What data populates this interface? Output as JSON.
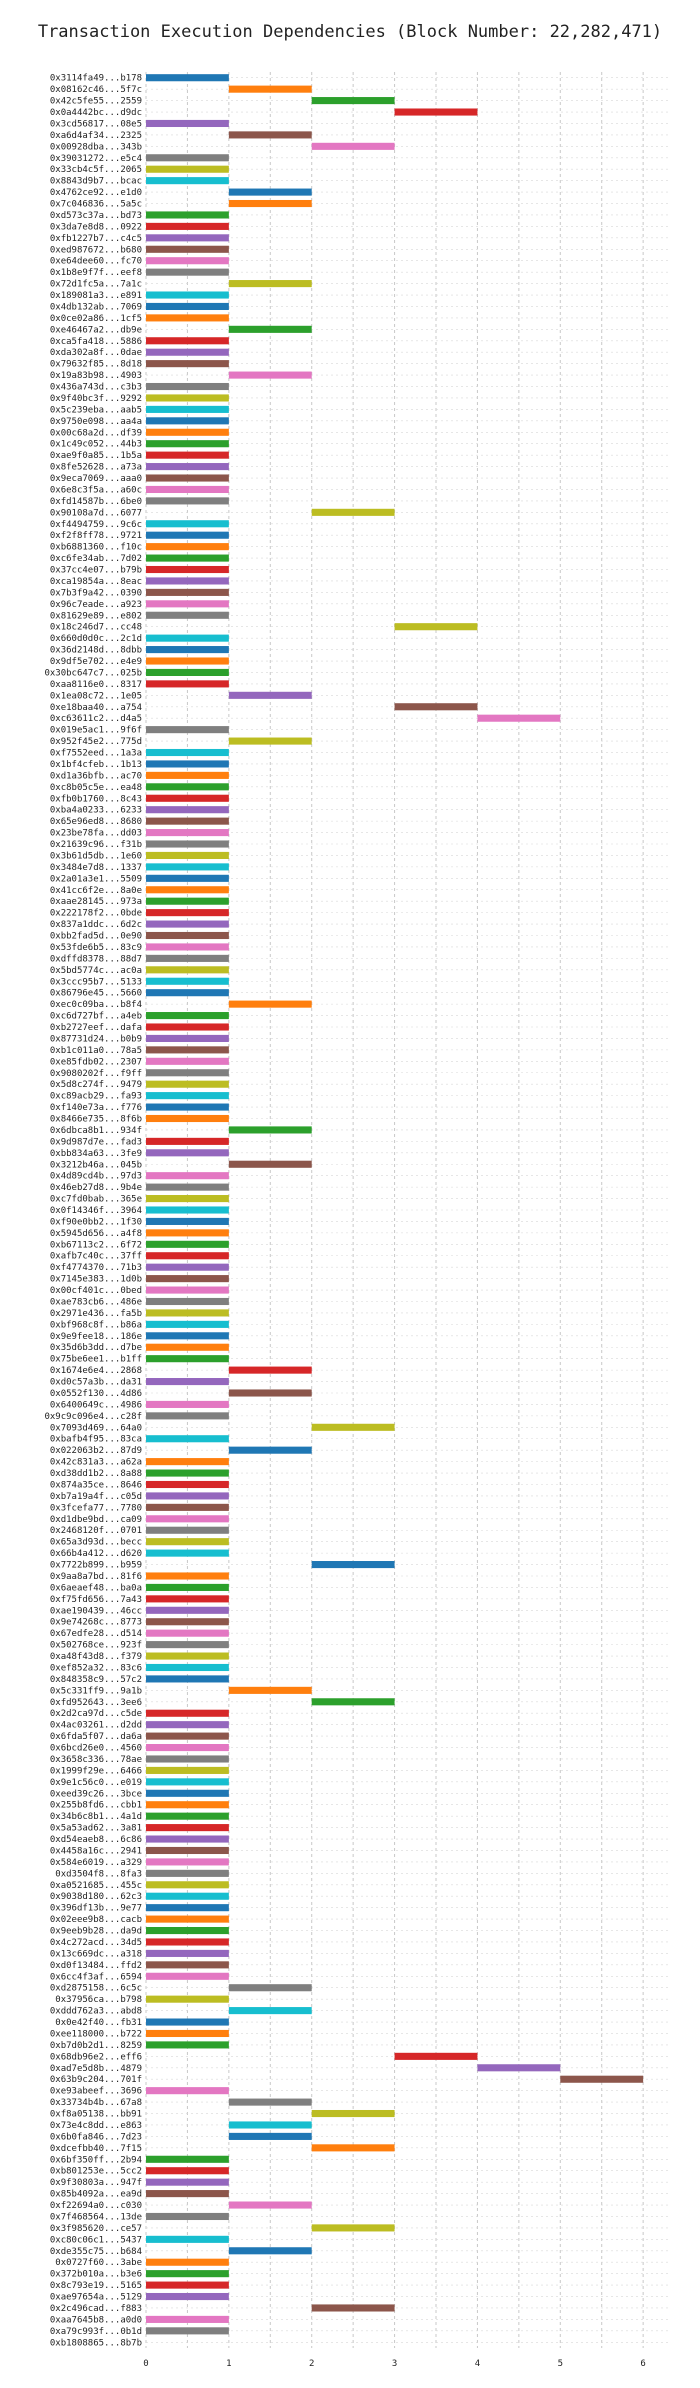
{
  "title": "Transaction Execution Dependencies (Block Number: 22,282,471)",
  "palette": [
    "#1f77b4",
    "#ff7f0e",
    "#2ca02c",
    "#d62728",
    "#9467bd",
    "#8c564b",
    "#e377c2",
    "#7f7f7f",
    "#bcbd22",
    "#17becf"
  ],
  "chart_data": {
    "type": "bar",
    "orientation": "horizontal",
    "title": "Transaction Execution Dependencies (Block Number: 22,282,471)",
    "xlabel": "",
    "ylabel": "",
    "xlim": [
      0,
      6.3
    ],
    "xticks": [
      0,
      1,
      2,
      3,
      4,
      5,
      6
    ],
    "grid": true,
    "tx_ids": [
      "0x3114fa49...b178",
      "0x08162c46...5f7c",
      "0x42c5fe55...2559",
      "0x0a4442bc...d9dc",
      "0x3cd56817...08e5",
      "0xa6d4af34...2325",
      "0x00928dba...343b",
      "0x39031272...e5c4",
      "0x33cb4c5f...2065",
      "0x8843d9b7...bcac",
      "0x4762ce92...e1d0",
      "0x7c046836...5a5c",
      "0xd573c37a...bd73",
      "0x3da7e8d8...0922",
      "0xfb1227b7...c4c5",
      "0xed987672...b680",
      "0xe64dee60...fc70",
      "0x1b8e9f7f...eef8",
      "0x72d1fc5a...7a1c",
      "0x189081a3...e891",
      "0x4db132ab...7069",
      "0x0ce02a86...1cf5",
      "0xe46467a2...db9e",
      "0xca5fa418...5886",
      "0xda302a8f...0dae",
      "0x79632f85...8d18",
      "0x19a83b98...4903",
      "0x436a743d...c3b3",
      "0x9f40bc3f...9292",
      "0x5c239eba...aab5",
      "0x9750e098...aa4a",
      "0x00c68a2d...df39",
      "0x1c49c052...44b3",
      "0xae9f0a85...1b5a",
      "0x8fe52628...a73a",
      "0x9eca7069...aaa0",
      "0x6e8c3f5a...a60c",
      "0xfd14587b...6be0",
      "0x90108a7d...6077",
      "0xf4494759...9c6c",
      "0xf2f8ff78...9721",
      "0xb6881360...f10c",
      "0xc6fe34ab...7d02",
      "0x37cc4e07...b79b",
      "0xca19854a...8eac",
      "0x7b3f9a42...0390",
      "0x96c7eade...a923",
      "0x81629e89...e802",
      "0x18c246d7...cc48",
      "0x660d0d0c...2c1d",
      "0x36d2148d...8dbb",
      "0x9df5e702...e4e9",
      "0x30bc647c7...025b",
      "0xaa8116e0...8317",
      "0x1ea08c72...1e05",
      "0xe18baa40...a754",
      "0xc63611c2...d4a5",
      "0x019e5ac1...9f6f",
      "0x952f45e2...775d",
      "0xf7552eed...1a3a",
      "0x1bf4cfeb...1b13",
      "0xd1a36bfb...ac70",
      "0xc8b05c5e...ea48",
      "0xfb0b1760...8c43",
      "0xba4a0233...6233",
      "0x65e96ed8...8680",
      "0x23be78fa...dd03",
      "0x21639c96...f31b",
      "0x3b61d5db...1e60",
      "0x3484e7d8...1337",
      "0x2a01a3e1...5509",
      "0x41cc6f2e...8a0e",
      "0xaae28145...973a",
      "0x222178f2...0bde",
      "0x837a1ddc...6d2c",
      "0xbb2fad5d...0e90",
      "0x53fde6b5...83c9",
      "0xdffd8378...88d7",
      "0x5bd5774c...ac0a",
      "0x3ccc95b7...5133",
      "0x86796e45...5660",
      "0xec0c09ba...b8f4",
      "0xc6d727bf...a4eb",
      "0xb2727eef...dafa",
      "0x87731d24...b0b9",
      "0xb1c011a0...78a5",
      "0xe85fdb02...2307",
      "0x9080202f...f9ff",
      "0x5d8c274f...9479",
      "0xc89acb29...fa93",
      "0xf140e73a...f776",
      "0x8466e735...8f6b",
      "0x6dbca8b1...934f",
      "0x9d987d7e...fad3",
      "0xbb834a63...3fe9",
      "0x3212b46a...045b",
      "0x4d89cd4b...97d3",
      "0x46eb27d8...9b4e",
      "0xc7fd0bab...365e",
      "0x0f14346f...3964",
      "0xf90e0bb2...1f30",
      "0x5945d656...a4f8",
      "0xb67113c2...6f72",
      "0xafb7c40c...37ff",
      "0xf4774370...71b3",
      "0x7145e383...1d0b",
      "0x00cf401c...0bed",
      "0xae783cb6...486e",
      "0x2971e436...fa5b",
      "0xbf968c8f...b86a",
      "0x9e9fee18...186e",
      "0x35d6b3dd...d7be",
      "0x75be6ee1...b1ff",
      "0x1674e6e4...2868",
      "0xd0c57a3b...da31",
      "0x0552f130...4d86",
      "0x6400649c...4986",
      "0x9c9c096e4...c28f",
      "0x7093d469...64a0",
      "0xbafb4f95...83ca",
      "0x022063b2...87d9",
      "0x42c831a3...a62a",
      "0xd38dd1b2...8a88",
      "0x874a35ce...8646",
      "0xb7a19a4f...c05d",
      "0x3fcefa77...7780",
      "0xd1dbe9bd...ca09",
      "0x2468120f...0701",
      "0x65a3d93d...becc",
      "0x66b4a412...d620",
      "0x7722b899...b959",
      "0x9aa8a7bd...81f6",
      "0x6aeaef48...ba0a",
      "0xf75fd656...7a43",
      "0xae190439...46cc",
      "0x9e74268c...8773",
      "0x67edfe28...d514",
      "0x502768ce...923f",
      "0xa48f43d8...f379",
      "0xef852a32...83c6",
      "0x848358c9...57c2",
      "0x5c331ff9...9a1b",
      "0xfd952643...3ee6",
      "0x2d2ca97d...c5de",
      "0x4ac03261...d2dd",
      "0x6fda5f07...da6a",
      "0x6bcd26e0...4560",
      "0x3658c336...78ae",
      "0x1999f29e...6466",
      "0x9e1c56c0...e019",
      "0xeed39c26...3bce",
      "0x255b8fd6...cbb1",
      "0x34b6c8b1...4a1d",
      "0x5a53ad62...3a81",
      "0xd54eaeb8...6c86",
      "0x4458a16c...2941",
      "0x584e6019...a329",
      "0xd3504f8...8fa3",
      "0xa0521685...455c",
      "0x9038d180...62c3",
      "0x396df13b...9e77",
      "0x02eee9b8...cacb",
      "0x9eeb9b28...da9d",
      "0x4c272acd...34d5",
      "0x13c669dc...a318",
      "0xd0f13484...ffd2",
      "0x6cc4f3af...6594",
      "0xd2875158...6c5c",
      "0x37956ca...b798",
      "0xddd762a3...abd8",
      "0x0e42f40...fb31",
      "0xee118000...b722",
      "0xb7d0b2d1...8259",
      "0x68db96e2...eff6",
      "0xad7e5d8b...4879",
      "0x63b9c204...701f",
      "0xe93abeef...3696",
      "0x33734b4b...67a8",
      "0xf8a05138...bb91",
      "0x73e4c8dd...e863",
      "0x6b0fa846...7d23",
      "0xdcefbb40...7f15",
      "0x6bf350ff...2b94",
      "0xb801253e...5cc2",
      "0x9f30803a...947f",
      "0x85b4092a...ea9d",
      "0xf22694a0...c030",
      "0x7f468564...13de",
      "0x3f985620...ce57",
      "0xc80c06c1...5437",
      "0xde355c75...b684",
      "0x0727f60...3abe",
      "0x372b010a...b3e6",
      "0x8c793e19...5165",
      "0xae97654a...5129",
      "0x2c496cad...f883",
      "0xaa7645b8...a0d0",
      "0xa79c993f...0b1d",
      "0xb1808865...8b7b"
    ],
    "bars": [
      [
        0,
        1
      ],
      [
        1,
        2
      ],
      [
        2,
        3
      ],
      [
        3,
        4
      ],
      [
        0,
        1
      ],
      [
        1,
        2
      ],
      [
        2,
        3
      ],
      [
        0,
        1
      ],
      [
        0,
        1
      ],
      [
        0,
        1
      ],
      [
        1,
        2
      ],
      [
        1,
        2
      ],
      [
        0,
        1
      ],
      [
        0,
        1
      ],
      [
        0,
        1
      ],
      [
        0,
        1
      ],
      [
        0,
        1
      ],
      [
        0,
        1
      ],
      [
        1,
        2
      ],
      [
        0,
        1
      ],
      [
        0,
        1
      ],
      [
        0,
        1
      ],
      [
        1,
        2
      ],
      [
        0,
        1
      ],
      [
        0,
        1
      ],
      [
        0,
        1
      ],
      [
        1,
        2
      ],
      [
        0,
        1
      ],
      [
        0,
        1
      ],
      [
        0,
        1
      ],
      [
        0,
        1
      ],
      [
        0,
        1
      ],
      [
        0,
        1
      ],
      [
        0,
        1
      ],
      [
        0,
        1
      ],
      [
        0,
        1
      ],
      [
        0,
        1
      ],
      [
        0,
        1
      ],
      [
        2,
        3
      ],
      [
        0,
        1
      ],
      [
        0,
        1
      ],
      [
        0,
        1
      ],
      [
        0,
        1
      ],
      [
        0,
        1
      ],
      [
        0,
        1
      ],
      [
        0,
        1
      ],
      [
        0,
        1
      ],
      [
        0,
        1
      ],
      [
        3,
        4
      ],
      [
        0,
        1
      ],
      [
        0,
        1
      ],
      [
        0,
        1
      ],
      [
        0,
        1
      ],
      [
        0,
        1
      ],
      [
        1,
        2
      ],
      [
        3,
        4
      ],
      [
        4,
        5
      ],
      [
        0,
        1
      ],
      [
        1,
        2
      ],
      [
        0,
        1
      ],
      [
        0,
        1
      ],
      [
        0,
        1
      ],
      [
        0,
        1
      ],
      [
        0,
        1
      ],
      [
        0,
        1
      ],
      [
        0,
        1
      ],
      [
        0,
        1
      ],
      [
        0,
        1
      ],
      [
        0,
        1
      ],
      [
        0,
        1
      ],
      [
        0,
        1
      ],
      [
        0,
        1
      ],
      [
        0,
        1
      ],
      [
        0,
        1
      ],
      [
        0,
        1
      ],
      [
        0,
        1
      ],
      [
        0,
        1
      ],
      [
        0,
        1
      ],
      [
        0,
        1
      ],
      [
        0,
        1
      ],
      [
        0,
        1
      ],
      [
        1,
        2
      ],
      [
        0,
        1
      ],
      [
        0,
        1
      ],
      [
        0,
        1
      ],
      [
        0,
        1
      ],
      [
        0,
        1
      ],
      [
        0,
        1
      ],
      [
        0,
        1
      ],
      [
        0,
        1
      ],
      [
        0,
        1
      ],
      [
        0,
        1
      ],
      [
        1,
        2
      ],
      [
        0,
        1
      ],
      [
        0,
        1
      ],
      [
        1,
        2
      ],
      [
        0,
        1
      ],
      [
        0,
        1
      ],
      [
        0,
        1
      ],
      [
        0,
        1
      ],
      [
        0,
        1
      ],
      [
        0,
        1
      ],
      [
        0,
        1
      ],
      [
        0,
        1
      ],
      [
        0,
        1
      ],
      [
        0,
        1
      ],
      [
        0,
        1
      ],
      [
        0,
        1
      ],
      [
        0,
        1
      ],
      [
        0,
        1
      ],
      [
        0,
        1
      ],
      [
        0,
        1
      ],
      [
        0,
        1
      ],
      [
        1,
        2
      ],
      [
        0,
        1
      ],
      [
        1,
        2
      ],
      [
        0,
        1
      ],
      [
        0,
        1
      ],
      [
        2,
        3
      ],
      [
        0,
        1
      ],
      [
        1,
        2
      ],
      [
        0,
        1
      ],
      [
        0,
        1
      ],
      [
        0,
        1
      ],
      [
        0,
        1
      ],
      [
        0,
        1
      ],
      [
        0,
        1
      ],
      [
        0,
        1
      ],
      [
        0,
        1
      ],
      [
        0,
        1
      ],
      [
        2,
        3
      ],
      [
        0,
        1
      ],
      [
        0,
        1
      ],
      [
        0,
        1
      ],
      [
        0,
        1
      ],
      [
        0,
        1
      ],
      [
        0,
        1
      ],
      [
        0,
        1
      ],
      [
        0,
        1
      ],
      [
        0,
        1
      ],
      [
        0,
        1
      ],
      [
        1,
        2
      ],
      [
        2,
        3
      ],
      [
        0,
        1
      ],
      [
        0,
        1
      ],
      [
        0,
        1
      ],
      [
        0,
        1
      ],
      [
        0,
        1
      ],
      [
        0,
        1
      ],
      [
        0,
        1
      ],
      [
        0,
        1
      ],
      [
        0,
        1
      ],
      [
        0,
        1
      ],
      [
        0,
        1
      ],
      [
        0,
        1
      ],
      [
        0,
        1
      ],
      [
        0,
        1
      ],
      [
        0,
        1
      ],
      [
        0,
        1
      ],
      [
        0,
        1
      ],
      [
        0,
        1
      ],
      [
        0,
        1
      ],
      [
        0,
        1
      ],
      [
        0,
        1
      ],
      [
        0,
        1
      ],
      [
        0,
        1
      ],
      [
        0,
        1
      ],
      [
        1,
        2
      ],
      [
        0,
        1
      ],
      [
        1,
        2
      ],
      [
        0,
        1
      ],
      [
        0,
        1
      ],
      [
        0,
        1
      ],
      [
        3,
        4
      ],
      [
        4,
        5
      ],
      [
        5,
        6
      ],
      [
        0,
        1
      ],
      [
        1,
        2
      ],
      [
        2,
        3
      ],
      [
        1,
        2
      ],
      [
        1,
        2
      ],
      [
        2,
        3
      ],
      [
        0,
        1
      ],
      [
        0,
        1
      ],
      [
        0,
        1
      ],
      [
        0,
        1
      ],
      [
        1,
        2
      ],
      [
        0,
        1
      ],
      [
        2,
        3
      ],
      [
        0,
        1
      ],
      [
        1,
        2
      ],
      [
        0,
        1
      ],
      [
        0,
        1
      ],
      [
        0,
        1
      ],
      [
        0,
        1
      ],
      [
        2,
        3
      ],
      [
        0,
        1
      ],
      [
        0,
        1
      ]
    ]
  }
}
